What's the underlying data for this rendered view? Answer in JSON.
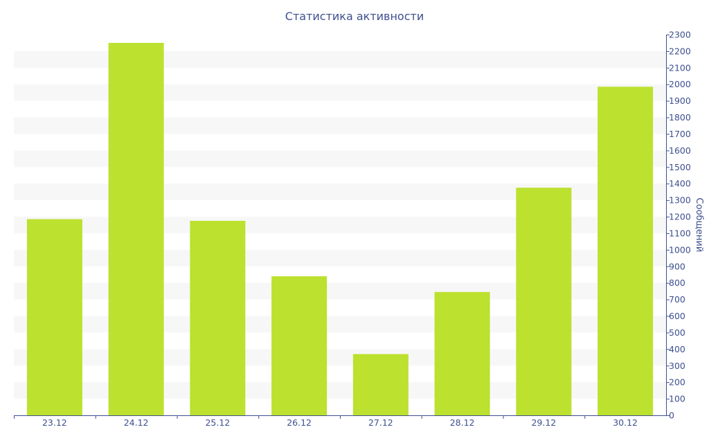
{
  "chart_data": {
    "type": "bar",
    "title": "Статистика активности",
    "categories": [
      "23.12",
      "24.12",
      "25.12",
      "26.12",
      "27.12",
      "28.12",
      "29.12",
      "30.12"
    ],
    "values": [
      1185,
      2250,
      1175,
      840,
      370,
      745,
      1375,
      1985
    ],
    "ylabel": "Сообщений",
    "ylim": [
      0,
      2300
    ],
    "y_ticks": [
      0,
      100,
      200,
      300,
      400,
      500,
      600,
      700,
      800,
      900,
      1000,
      1100,
      1200,
      1300,
      1400,
      1500,
      1600,
      1700,
      1800,
      1900,
      2000,
      2100,
      2200,
      2300
    ],
    "y_axis_side": "right",
    "grid": "alternating horizontal bands",
    "colors": {
      "bar": "#bce12f",
      "band": "#f7f7f7",
      "axis": "#3d4f8e",
      "text": "#3d4f8e"
    }
  }
}
